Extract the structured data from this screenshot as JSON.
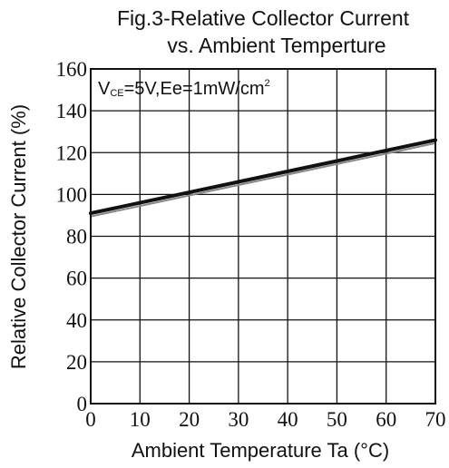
{
  "chart_data": {
    "type": "line",
    "title_lines": [
      "Fig.3-Relative Collector Current",
      "vs. Ambient Temperture"
    ],
    "xlabel": "Ambient Temperature Ta (°C)",
    "ylabel": "Relative Collector Current (%)",
    "xlim": [
      0,
      70
    ],
    "ylim": [
      0,
      160
    ],
    "xticks": [
      0,
      10,
      20,
      30,
      40,
      50,
      60,
      70
    ],
    "yticks": [
      0,
      20,
      40,
      60,
      80,
      100,
      120,
      140,
      160
    ],
    "grid": true,
    "annotation": {
      "parts": [
        {
          "text": "V",
          "style": "normal"
        },
        {
          "text": "CE",
          "style": "sub"
        },
        {
          "text": "=5V,Ee=1mW/cm",
          "style": "normal"
        },
        {
          "text": "2",
          "style": "sup"
        }
      ],
      "position": "top-left"
    },
    "series": [
      {
        "x": [
          0,
          10,
          20,
          30,
          40,
          50,
          60,
          70
        ],
        "y": [
          91,
          96,
          101,
          106,
          111,
          116,
          121,
          126
        ],
        "color": "#111111",
        "style": "thick"
      },
      {
        "x": [
          0,
          10,
          20,
          30,
          40,
          50,
          60,
          70
        ],
        "y": [
          89.5,
          94.5,
          99.5,
          104.5,
          109.5,
          114.5,
          119.5,
          124.5
        ],
        "color": "#888888",
        "style": "thin"
      }
    ]
  }
}
